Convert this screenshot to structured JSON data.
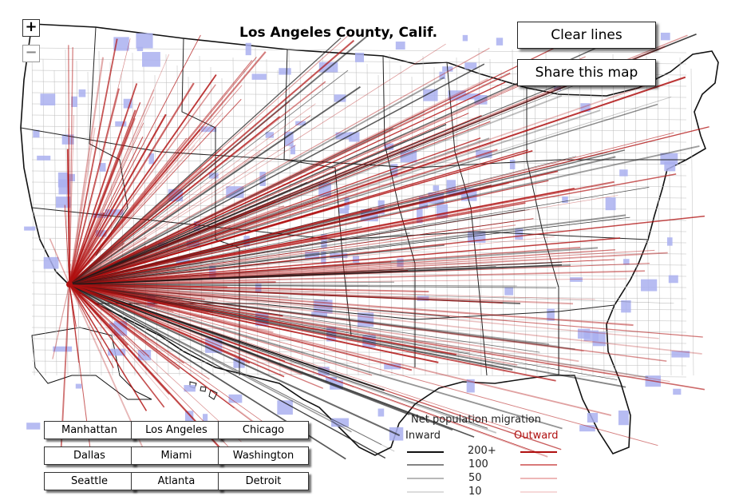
{
  "title": "Los Angeles County, Calif.",
  "controls": {
    "zoom_in": "+",
    "zoom_out": "−",
    "clear_lines": "Clear lines",
    "share_map": "Share this map"
  },
  "cities": [
    "Manhattan",
    "Los Angeles",
    "Chicago",
    "Dallas",
    "Miami",
    "Washington",
    "Seattle",
    "Atlanta",
    "Detroit"
  ],
  "legend": {
    "title": "Net population migration",
    "inward": "Inward",
    "outward": "Outward",
    "levels": [
      "200+",
      "100",
      "50",
      "10"
    ]
  },
  "colors": {
    "inward_line": "#1a1a1a",
    "outward_line": "#b01010",
    "county_highlight": "#aab0f0",
    "outward_label": "#b01010"
  }
}
